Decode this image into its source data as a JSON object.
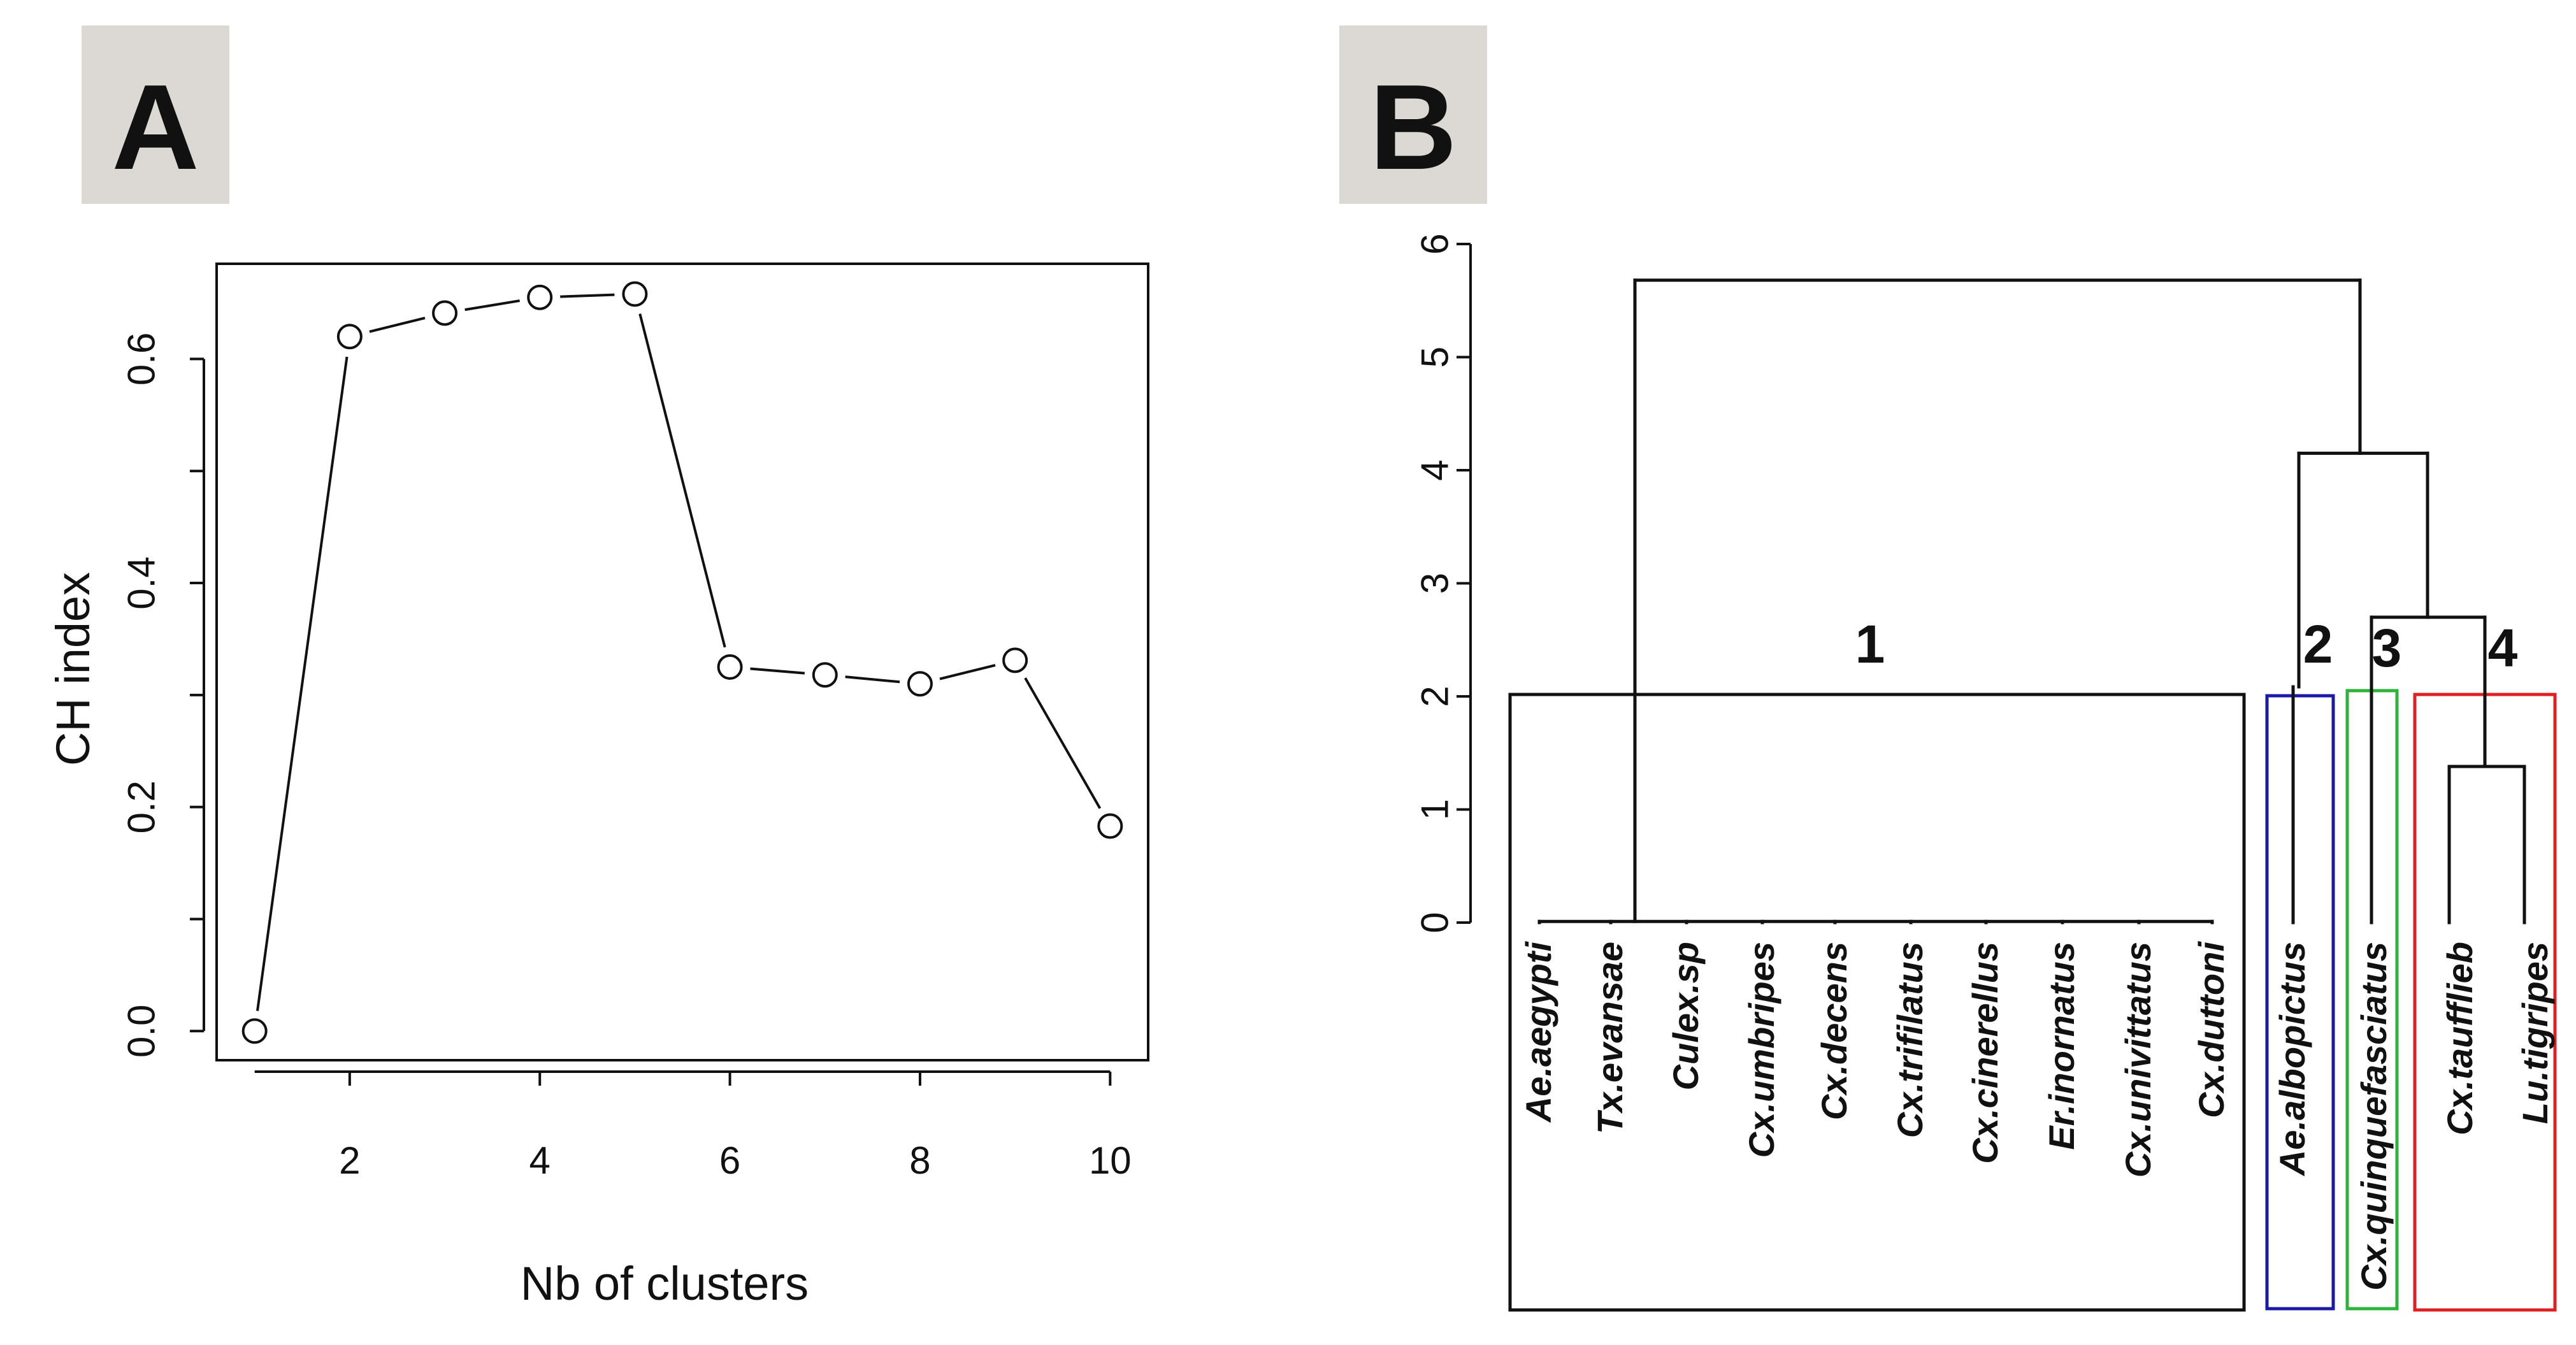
{
  "panels": {
    "a": {
      "label": "A"
    },
    "b": {
      "label": "B"
    }
  },
  "colors": {
    "label_box": "#dcd9d5",
    "ink": "#111111",
    "cluster_1": "#111111",
    "cluster_2": "#1a1aa8",
    "cluster_3": "#2bb33a",
    "cluster_4": "#e02020"
  },
  "chart_data": [
    {
      "type": "line",
      "panel": "A",
      "xlabel": "Nb of clusters",
      "ylabel": "CH index",
      "x": [
        1,
        2,
        3,
        4,
        5,
        6,
        7,
        8,
        9,
        10
      ],
      "y": [
        0.0,
        0.62,
        0.641,
        0.655,
        0.658,
        0.325,
        0.318,
        0.31,
        0.331,
        0.183
      ],
      "xticks": [
        2,
        4,
        6,
        8,
        10
      ],
      "yticks": [
        "0.0",
        "0.2",
        "0.4",
        "0.6"
      ],
      "ytick_values": [
        0.0,
        0.2,
        0.4,
        0.6
      ],
      "xlim": [
        0.6,
        10.4
      ],
      "ylim": [
        -0.026,
        0.685
      ],
      "marker": "open-circle",
      "grid": false
    },
    {
      "type": "dendrogram",
      "panel": "B",
      "yticks": [
        "0",
        "1",
        "2",
        "3",
        "4",
        "5",
        "6"
      ],
      "ytick_values": [
        0,
        1,
        2,
        3,
        4,
        5,
        6
      ],
      "ylim": [
        0,
        6
      ],
      "leaves": [
        "Ae.aegypti",
        "Tx.evansae",
        "Culex.sp",
        "Cx.umbripes",
        "Cx.decens",
        "Cx.trifilatus",
        "Cx.cinerellus",
        "Er.inornatus",
        "Cx.univittatus",
        "Cx.duttoni",
        "Ae.albopictus",
        "Cx.quinquefasciatus",
        "Cx.taufflieb",
        "Lu.tigripes"
      ],
      "merge_heights": {
        "cluster_1_internal": 0.01,
        "taufflieb_tigripes": 1.38,
        "cluster_3_with_4": 2.7,
        "cluster_2_with_3_4": 4.15,
        "root": 5.68
      },
      "clusters": [
        {
          "label": "1",
          "leaf_range": [
            0,
            9
          ],
          "color": "#111111"
        },
        {
          "label": "2",
          "leaf_range": [
            10,
            10
          ],
          "color": "#1a1aa8"
        },
        {
          "label": "3",
          "leaf_range": [
            11,
            11
          ],
          "color": "#2bb33a"
        },
        {
          "label": "4",
          "leaf_range": [
            12,
            13
          ],
          "color": "#e02020"
        }
      ]
    }
  ]
}
